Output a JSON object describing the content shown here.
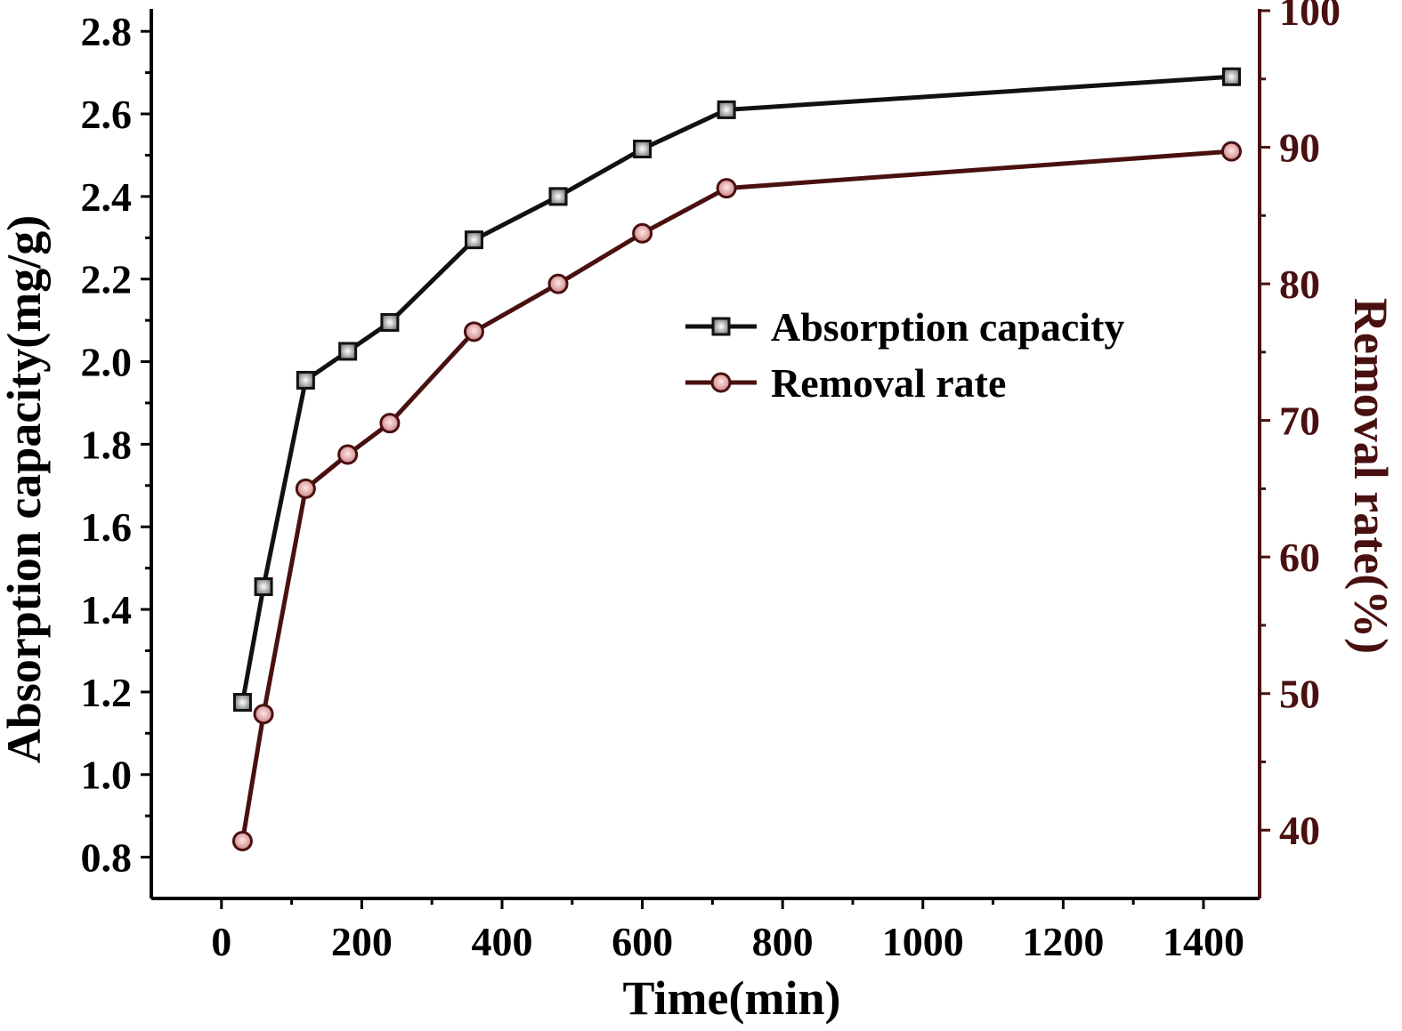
{
  "chart_data": {
    "type": "line",
    "title": "",
    "xlabel": "Time(min)",
    "ylabel_left": "Absorption capacity(mg/g)",
    "ylabel_right": "Removal rate(%)",
    "xlim": [
      -100,
      1480
    ],
    "ylim_left": [
      0.7,
      2.85
    ],
    "ylim_right": [
      35,
      100
    ],
    "x_ticks": [
      0,
      200,
      400,
      600,
      800,
      1000,
      1200,
      1400
    ],
    "y_left_ticks": [
      0.8,
      1.0,
      1.2,
      1.4,
      1.6,
      1.8,
      2.0,
      2.2,
      2.4,
      2.6,
      2.8
    ],
    "y_right_ticks": [
      40,
      50,
      60,
      70,
      80,
      90,
      100
    ],
    "x_tick_labels": [
      "0",
      "200",
      "400",
      "600",
      "800",
      "1000",
      "1200",
      "1400"
    ],
    "y_left_tick_labels": [
      "0.8",
      "1.0",
      "1.2",
      "1.4",
      "1.6",
      "1.8",
      "2.0",
      "2.2",
      "2.4",
      "2.6",
      "2.8"
    ],
    "y_right_tick_labels": [
      "40",
      "50",
      "60",
      "70",
      "80",
      "90",
      "100"
    ],
    "grid": false,
    "legend_position": "center-right",
    "series": [
      {
        "name": "Absorption capacity",
        "axis": "left",
        "marker": "square",
        "color": "#111111",
        "x": [
          30,
          60,
          120,
          180,
          240,
          360,
          480,
          600,
          720,
          1440
        ],
        "y": [
          1.175,
          1.455,
          1.955,
          2.025,
          2.095,
          2.295,
          2.4,
          2.515,
          2.61,
          2.69
        ]
      },
      {
        "name": "Removal rate",
        "axis": "right",
        "marker": "circle",
        "color": "#4a1010",
        "x": [
          30,
          60,
          120,
          180,
          240,
          360,
          480,
          600,
          720,
          1440
        ],
        "y": [
          39.2,
          48.5,
          65.0,
          67.5,
          69.8,
          76.5,
          80.0,
          83.7,
          87.0,
          89.7
        ]
      }
    ],
    "colors": {
      "left_axis": "#000000",
      "right_axis": "#4a1010",
      "left_line": "#111111",
      "right_line": "#4a1010",
      "square_fill": "#9a9a9a",
      "circle_fill": "#e8a8a8"
    }
  }
}
